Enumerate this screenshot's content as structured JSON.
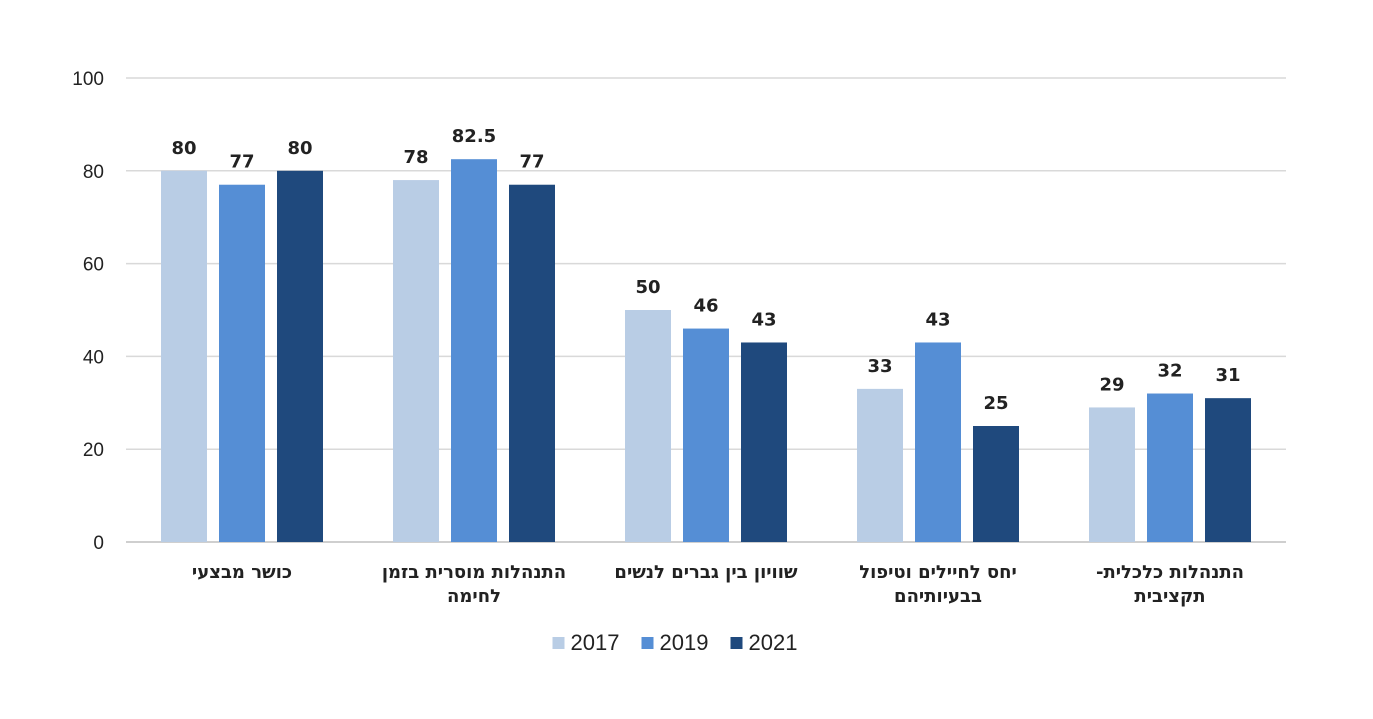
{
  "chart_data": {
    "type": "bar",
    "categories": [
      [
        "כושר מבצעי"
      ],
      [
        "התנהלות מוסרית בזמן",
        "לחימה"
      ],
      [
        "שוויון בין גברים לנשים"
      ],
      [
        "יחס לחיילים וטיפול",
        "בבעיותיהם"
      ],
      [
        "התנהלות כלכלית-",
        "תקציבית"
      ]
    ],
    "series": [
      {
        "name": "2017",
        "color": "#b9cde5",
        "values": [
          80,
          78,
          50,
          33,
          29
        ],
        "labels": [
          "80",
          "78",
          "50",
          "33",
          "29"
        ]
      },
      {
        "name": "2019",
        "color": "#558ed5",
        "values": [
          77,
          82.5,
          46,
          43,
          32
        ],
        "labels": [
          "77",
          "82.5",
          "46",
          "43",
          "32"
        ]
      },
      {
        "name": "2021",
        "color": "#1f497d",
        "values": [
          80,
          77,
          43,
          25,
          31
        ],
        "labels": [
          "80",
          "77",
          "43",
          "25",
          "31"
        ]
      }
    ],
    "ylim": [
      0,
      100
    ],
    "yticks": [
      "0",
      "20",
      "40",
      "60",
      "80",
      "100"
    ],
    "grid": true,
    "legend": "bottom-center"
  }
}
